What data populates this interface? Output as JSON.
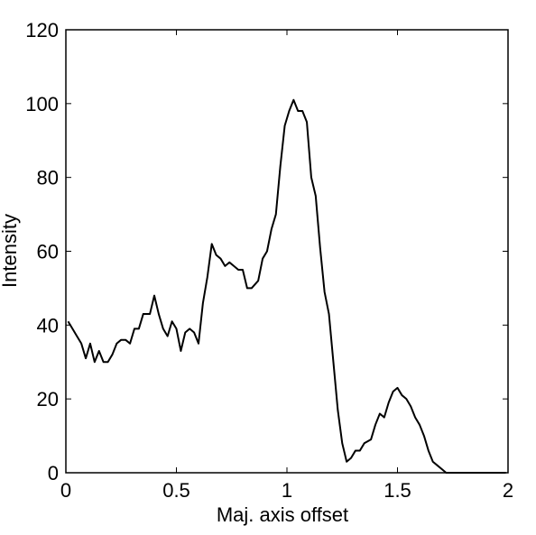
{
  "chart_data": {
    "type": "line",
    "x_label": "Maj. axis offset",
    "y_label": "Intensity",
    "x": [
      0.01,
      0.03,
      0.05,
      0.07,
      0.09,
      0.11,
      0.13,
      0.15,
      0.17,
      0.19,
      0.21,
      0.23,
      0.25,
      0.27,
      0.29,
      0.31,
      0.33,
      0.35,
      0.38,
      0.4,
      0.42,
      0.44,
      0.46,
      0.48,
      0.5,
      0.52,
      0.54,
      0.56,
      0.58,
      0.6,
      0.62,
      0.64,
      0.66,
      0.68,
      0.7,
      0.72,
      0.74,
      0.76,
      0.78,
      0.8,
      0.82,
      0.84,
      0.87,
      0.89,
      0.91,
      0.93,
      0.95,
      0.97,
      0.99,
      1.01,
      1.03,
      1.05,
      1.07,
      1.09,
      1.11,
      1.13,
      1.15,
      1.17,
      1.19,
      1.21,
      1.23,
      1.25,
      1.27,
      1.29,
      1.31,
      1.33,
      1.35,
      1.38,
      1.4,
      1.42,
      1.44,
      1.46,
      1.48,
      1.5,
      1.52,
      1.54,
      1.56,
      1.58,
      1.6,
      1.62,
      1.64,
      1.66,
      1.68,
      1.7,
      1.72,
      1.74,
      1.76,
      1.78,
      1.8,
      1.82,
      1.84,
      1.86,
      1.89,
      1.91,
      1.93,
      1.95,
      1.97,
      1.99
    ],
    "series": [
      {
        "color": "#000000",
        "values": [
          41,
          39,
          37,
          35,
          31,
          35,
          30,
          33,
          30,
          30,
          32,
          35,
          36,
          36,
          35,
          39,
          39,
          43,
          43,
          48,
          43,
          39,
          37,
          41,
          39,
          33,
          38,
          39,
          38,
          35,
          46,
          53,
          62,
          59,
          58,
          56,
          57,
          56,
          55,
          55,
          50,
          50,
          52,
          58,
          60,
          66,
          70,
          83,
          94,
          98,
          101,
          98,
          98,
          95,
          80,
          75,
          61,
          49,
          43,
          30,
          17,
          8,
          3,
          4,
          6,
          6,
          8,
          9,
          13,
          16,
          15,
          19,
          22,
          23,
          21,
          20,
          18,
          15,
          13,
          10,
          6,
          3,
          2,
          1,
          0,
          0,
          0,
          0,
          0,
          0,
          0,
          0,
          0,
          0,
          0,
          0,
          0,
          0
        ]
      }
    ],
    "xlim": [
      0,
      2
    ],
    "xticks": [
      0,
      0.5,
      1,
      1.5,
      2
    ],
    "ylim": [
      0,
      120
    ],
    "yticks": [
      0,
      20,
      40,
      60,
      80,
      100,
      120
    ],
    "grid": false
  }
}
